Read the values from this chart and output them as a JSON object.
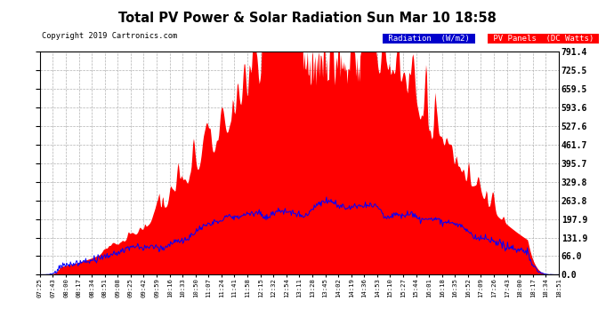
{
  "title": "Total PV Power & Solar Radiation Sun Mar 10 18:58",
  "copyright": "Copyright 2019 Cartronics.com",
  "background_color": "#ffffff",
  "plot_bg_color": "#ffffff",
  "grid_color": "#aaaaaa",
  "yticks": [
    0.0,
    66.0,
    131.9,
    197.9,
    263.8,
    329.8,
    395.7,
    461.7,
    527.6,
    593.6,
    659.5,
    725.5,
    791.4
  ],
  "ymax": 791.4,
  "ymin": 0.0,
  "bar_color": "#ff0000",
  "line_color": "#0000ff",
  "legend_label_radiation": "Radiation  (W/m2)",
  "legend_label_pv": "PV Panels  (DC Watts)",
  "legend_bg_radiation": "#0000cc",
  "legend_bg_pv": "#ff0000",
  "legend_text_color": "#ffffff",
  "num_points": 680,
  "x_tick_labels": [
    "07:25",
    "07:43",
    "08:00",
    "08:17",
    "08:34",
    "08:51",
    "09:08",
    "09:25",
    "09:42",
    "09:59",
    "10:16",
    "10:33",
    "10:50",
    "11:07",
    "11:24",
    "11:41",
    "11:58",
    "12:15",
    "12:32",
    "12:54",
    "13:11",
    "13:28",
    "13:45",
    "14:02",
    "14:19",
    "14:36",
    "14:53",
    "15:10",
    "15:27",
    "15:44",
    "16:01",
    "16:18",
    "16:35",
    "16:52",
    "17:09",
    "17:26",
    "17:43",
    "18:00",
    "18:17",
    "18:34",
    "18:51"
  ]
}
